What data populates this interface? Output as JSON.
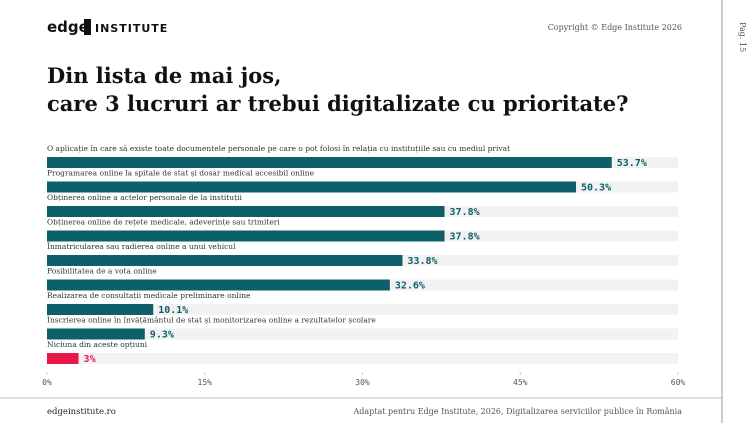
{
  "header": {
    "logo_word": "edge",
    "logo_box": "INSTITUTE",
    "copyright": "Copyright © Edge Institute 2026",
    "page": "Pag. 15"
  },
  "chart_data": {
    "type": "bar",
    "orientation": "horizontal",
    "title": [
      "Din lista de mai jos,",
      "care 3 lucruri ar trebui digitalizate cu prioritate?"
    ],
    "categories": [
      "O aplicație în care să existe toate documentele personale pe care o pot folosi în relația cu instituțiile sau cu mediul privat",
      "Programarea online la spitale de stat și dosar medical accesibil online",
      "Obținerea online a actelor personale de la instituții",
      "Obținerea online de rețete medicale, adeverințe sau trimiteri",
      "Înmatricularea sau radierea online a unui vehicul",
      "Posibilitatea de a vota online",
      "Realizarea de consultații medicale preliminare online",
      "Înscrierea online în învățământul de stat și monitorizarea online a rezultatelor școlare",
      "Niciuna din aceste opțiuni"
    ],
    "values": [
      53.7,
      50.3,
      37.8,
      37.8,
      33.8,
      32.6,
      10.1,
      9.3,
      3
    ],
    "value_labels": [
      "53.7%",
      "50.3%",
      "37.8%",
      "37.8%",
      "33.8%",
      "32.6%",
      "10.1%",
      "9.3%",
      "3%"
    ],
    "colors": [
      "#0d5f69",
      "#0d5f69",
      "#0d5f69",
      "#0d5f69",
      "#0d5f69",
      "#0d5f69",
      "#0d5f69",
      "#0d5f69",
      "#e8174a"
    ],
    "xlim": [
      0,
      60
    ],
    "xticks": [
      {
        "value": 0,
        "label": "0%"
      },
      {
        "value": 15,
        "label": "15%"
      },
      {
        "value": 30,
        "label": "30%"
      },
      {
        "value": 45,
        "label": "45%"
      },
      {
        "value": 60,
        "label": "60%"
      }
    ]
  },
  "footer": {
    "website": "edgeinstitute.ro",
    "source": "Adaptat pentru Edge Institute, 2026, Digitalizarea serviciilor publice în România"
  }
}
